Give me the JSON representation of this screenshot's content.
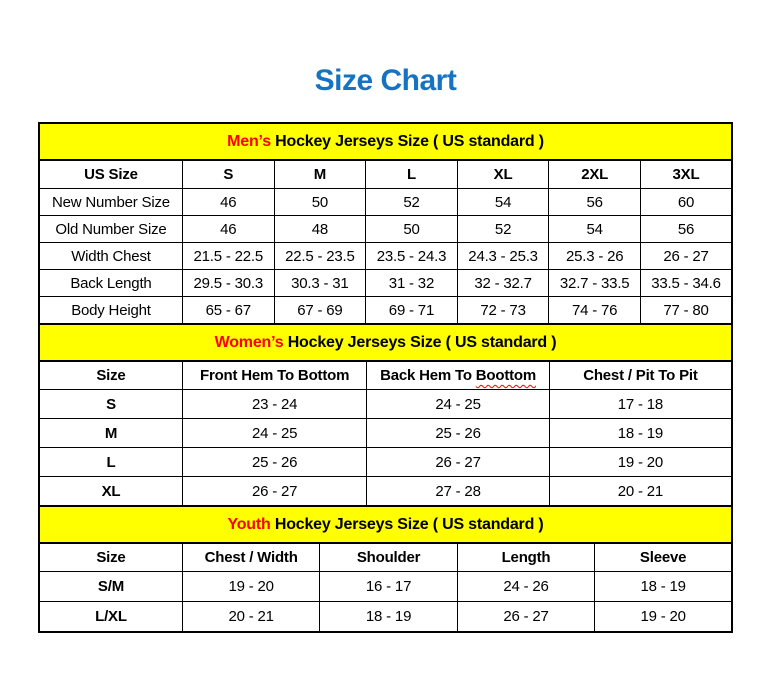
{
  "page": {
    "title": "Size Chart"
  },
  "colors": {
    "title_blue": "#1673C3",
    "band_background": "#FFFF00",
    "accent_red": "#FF0000",
    "text": "#000000",
    "border": "#000000"
  },
  "sections": [
    {
      "id": "mens",
      "band": {
        "accent": "Men’s",
        "rest": " Hockey Jerseys Size ( US standard )"
      },
      "columns": [
        "US Size",
        "S",
        "M",
        "L",
        "XL",
        "2XL",
        "3XL"
      ],
      "rows": [
        {
          "label": "New Number Size",
          "values": [
            "46",
            "50",
            "52",
            "54",
            "56",
            "60"
          ]
        },
        {
          "label": "Old Number Size",
          "values": [
            "46",
            "48",
            "50",
            "52",
            "54",
            "56"
          ]
        },
        {
          "label": "Width Chest",
          "values": [
            "21.5 - 22.5",
            "22.5 - 23.5",
            "23.5 - 24.3",
            "24.3 - 25.3",
            "25.3 - 26",
            "26 - 27"
          ]
        },
        {
          "label": "Back Length",
          "values": [
            "29.5 - 30.3",
            "30.3 - 31",
            "31 - 32",
            "32 - 32.7",
            "32.7 - 33.5",
            "33.5 - 34.6"
          ]
        },
        {
          "label": "Body Height",
          "values": [
            "65 - 67",
            "67 - 69",
            "69 - 71",
            "72 - 73",
            "74 - 76",
            "77 - 80"
          ]
        }
      ]
    },
    {
      "id": "womens",
      "band": {
        "accent": "Women’s",
        "rest": " Hockey Jerseys Size ( US standard )"
      },
      "columns": [
        "Size",
        "Front Hem To Bottom",
        "Back Hem To Boottom",
        "Chest / Pit To Pit"
      ],
      "squiggle_word": "Boottom",
      "rows": [
        {
          "label": "S",
          "values": [
            "23 - 24",
            "24 - 25",
            "17 - 18"
          ]
        },
        {
          "label": "M",
          "values": [
            "24 - 25",
            "25 - 26",
            "18 - 19"
          ]
        },
        {
          "label": "L",
          "values": [
            "25 - 26",
            "26 - 27",
            "19 - 20"
          ]
        },
        {
          "label": "XL",
          "values": [
            "26 - 27",
            "27 - 28",
            "20 - 21"
          ]
        }
      ]
    },
    {
      "id": "youth",
      "band": {
        "accent": "Youth",
        "rest": " Hockey Jerseys Size ( US standard )"
      },
      "columns": [
        "Size",
        "Chest / Width",
        "Shoulder",
        "Length",
        "Sleeve"
      ],
      "rows": [
        {
          "label": "S/M",
          "values": [
            "19 - 20",
            "16 - 17",
            "24 - 26",
            "18 - 19"
          ]
        },
        {
          "label": "L/XL",
          "values": [
            "20 - 21",
            "18 - 19",
            "26 - 27",
            "19 - 20"
          ]
        }
      ]
    }
  ]
}
